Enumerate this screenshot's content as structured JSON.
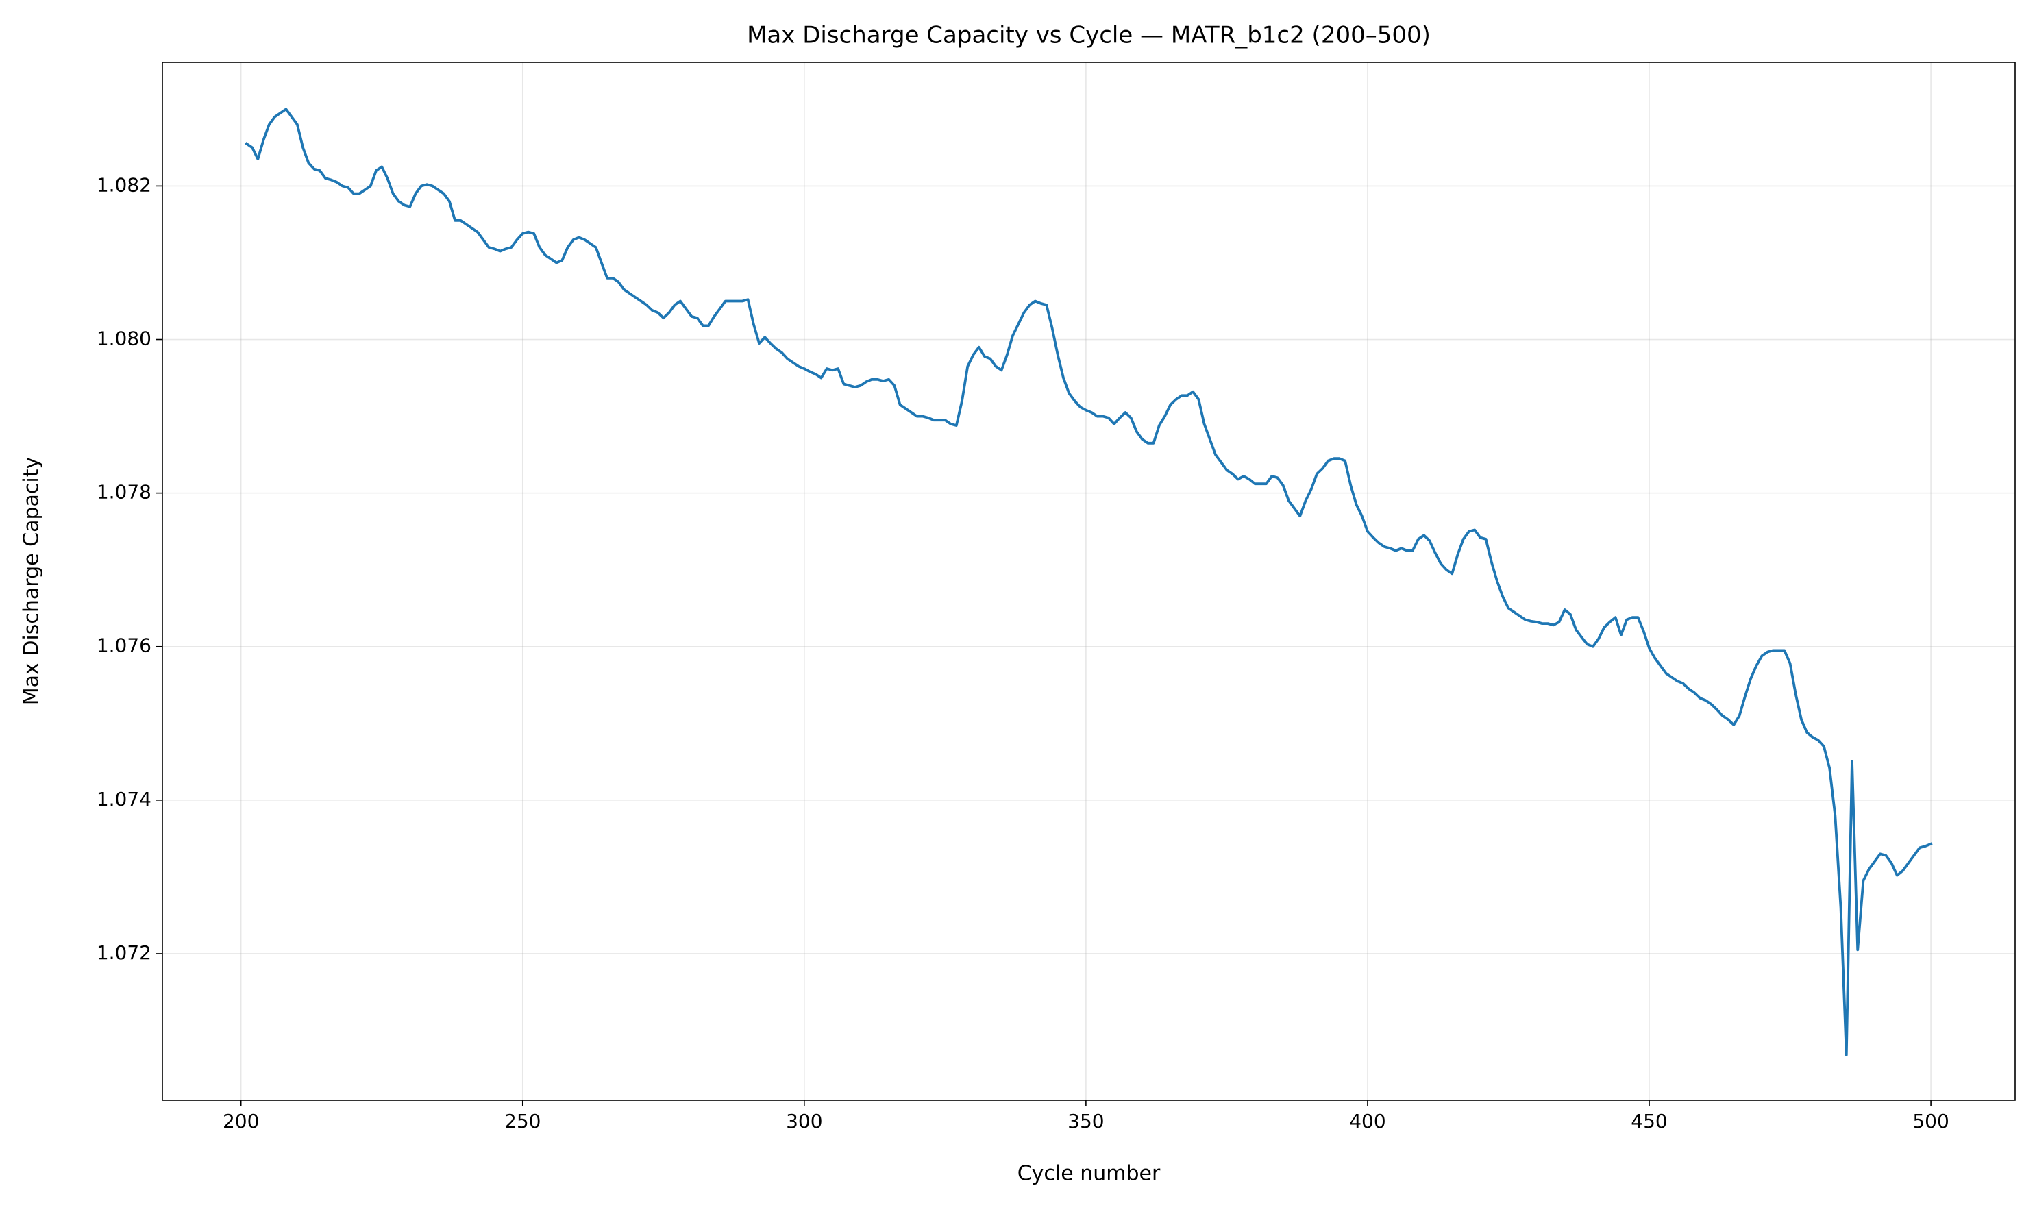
{
  "chart_data": {
    "type": "line",
    "title": "Max Discharge Capacity vs Cycle — MATR_b1c2 (200–500)",
    "x_label": "Cycle number",
    "y_label": "Max Discharge Capacity",
    "color": "#1f77b4",
    "grid": true,
    "xlim": [
      186.05,
      514.95
    ],
    "ylim": [
      1.07009,
      1.08361
    ],
    "xticks": [
      200,
      250,
      300,
      350,
      400,
      450,
      500
    ],
    "yticks": [
      1.072,
      1.074,
      1.076,
      1.078,
      {
        "value": 1.08,
        "label": "1.080"
      },
      1.082
    ],
    "x": [
      201,
      202,
      203,
      204,
      205,
      206,
      207,
      208,
      209,
      210,
      211,
      212,
      213,
      214,
      215,
      216,
      217,
      218,
      219,
      220,
      221,
      222,
      223,
      224,
      225,
      226,
      227,
      228,
      229,
      230,
      231,
      232,
      233,
      234,
      235,
      236,
      237,
      238,
      239,
      240,
      241,
      242,
      243,
      244,
      245,
      246,
      247,
      248,
      249,
      250,
      251,
      252,
      253,
      254,
      255,
      256,
      257,
      258,
      259,
      260,
      261,
      262,
      263,
      264,
      265,
      266,
      267,
      268,
      269,
      270,
      271,
      272,
      273,
      274,
      275,
      276,
      277,
      278,
      279,
      280,
      281,
      282,
      283,
      284,
      285,
      286,
      287,
      288,
      289,
      290,
      291,
      292,
      293,
      294,
      295,
      296,
      297,
      298,
      299,
      300,
      301,
      302,
      303,
      304,
      305,
      306,
      307,
      308,
      309,
      310,
      311,
      312,
      313,
      314,
      315,
      316,
      317,
      318,
      319,
      320,
      321,
      322,
      323,
      324,
      325,
      326,
      327,
      328,
      329,
      330,
      331,
      332,
      333,
      334,
      335,
      336,
      337,
      338,
      339,
      340,
      341,
      342,
      343,
      344,
      345,
      346,
      347,
      348,
      349,
      350,
      351,
      352,
      353,
      354,
      355,
      356,
      357,
      358,
      359,
      360,
      361,
      362,
      363,
      364,
      365,
      366,
      367,
      368,
      369,
      370,
      371,
      372,
      373,
      374,
      375,
      376,
      377,
      378,
      379,
      380,
      381,
      382,
      383,
      384,
      385,
      386,
      387,
      388,
      389,
      390,
      391,
      392,
      393,
      394,
      395,
      396,
      397,
      398,
      399,
      400,
      401,
      402,
      403,
      404,
      405,
      406,
      407,
      408,
      409,
      410,
      411,
      412,
      413,
      414,
      415,
      416,
      417,
      418,
      419,
      420,
      421,
      422,
      423,
      424,
      425,
      426,
      427,
      428,
      429,
      430,
      431,
      432,
      433,
      434,
      435,
      436,
      437,
      438,
      439,
      440,
      441,
      442,
      443,
      444,
      445,
      446,
      447,
      448,
      449,
      450,
      451,
      452,
      453,
      454,
      455,
      456,
      457,
      458,
      459,
      460,
      461,
      462,
      463,
      464,
      465,
      466,
      467,
      468,
      469,
      470,
      471,
      472,
      473,
      474,
      475,
      476,
      477,
      478,
      479,
      480,
      481,
      482,
      483,
      484,
      485,
      486,
      487,
      488,
      489,
      490,
      491,
      492,
      493,
      494,
      495,
      496,
      497,
      498,
      499,
      500
    ],
    "values": [
      1.08255,
      1.0825,
      1.08235,
      1.0826,
      1.0828,
      1.0829,
      1.08295,
      1.083,
      1.0829,
      1.0828,
      1.0825,
      1.0823,
      1.08222,
      1.0822,
      1.0821,
      1.08208,
      1.08205,
      1.082,
      1.08198,
      1.0819,
      1.0819,
      1.08195,
      1.082,
      1.0822,
      1.08225,
      1.0821,
      1.0819,
      1.0818,
      1.08175,
      1.08173,
      1.0819,
      1.082,
      1.08202,
      1.082,
      1.08195,
      1.0819,
      1.0818,
      1.08155,
      1.08155,
      1.0815,
      1.08145,
      1.0814,
      1.0813,
      1.0812,
      1.08118,
      1.08115,
      1.08118,
      1.0812,
      1.0813,
      1.08138,
      1.0814,
      1.08138,
      1.0812,
      1.0811,
      1.08105,
      1.081,
      1.08103,
      1.0812,
      1.0813,
      1.08133,
      1.0813,
      1.08125,
      1.0812,
      1.081,
      1.0808,
      1.0808,
      1.08075,
      1.08065,
      1.0806,
      1.08055,
      1.0805,
      1.08045,
      1.08038,
      1.08035,
      1.08028,
      1.08035,
      1.08045,
      1.0805,
      1.0804,
      1.0803,
      1.08028,
      1.08018,
      1.08018,
      1.0803,
      1.0804,
      1.0805,
      1.0805,
      1.0805,
      1.0805,
      1.08052,
      1.0802,
      1.07995,
      1.08003,
      1.07995,
      1.07988,
      1.07983,
      1.07975,
      1.0797,
      1.07965,
      1.07962,
      1.07958,
      1.07955,
      1.0795,
      1.07962,
      1.0796,
      1.07962,
      1.07942,
      1.0794,
      1.07938,
      1.0794,
      1.07945,
      1.07948,
      1.07948,
      1.07946,
      1.07948,
      1.0794,
      1.07915,
      1.0791,
      1.07905,
      1.079,
      1.079,
      1.07898,
      1.07895,
      1.07895,
      1.07895,
      1.0789,
      1.07888,
      1.0792,
      1.07965,
      1.0798,
      1.0799,
      1.07978,
      1.07975,
      1.07965,
      1.0796,
      1.0798,
      1.08005,
      1.0802,
      1.08035,
      1.08045,
      1.0805,
      1.08047,
      1.08045,
      1.08015,
      1.0798,
      1.0795,
      1.0793,
      1.0792,
      1.07912,
      1.07908,
      1.07905,
      1.079,
      1.079,
      1.07898,
      1.0789,
      1.07898,
      1.07905,
      1.07898,
      1.0788,
      1.0787,
      1.07865,
      1.07865,
      1.07888,
      1.079,
      1.07915,
      1.07922,
      1.07927,
      1.07927,
      1.07932,
      1.07922,
      1.0789,
      1.0787,
      1.0785,
      1.0784,
      1.0783,
      1.07825,
      1.07818,
      1.07822,
      1.07818,
      1.07812,
      1.07812,
      1.07812,
      1.07822,
      1.0782,
      1.0781,
      1.0779,
      1.0778,
      1.0777,
      1.0779,
      1.07805,
      1.07825,
      1.07832,
      1.07842,
      1.07845,
      1.07845,
      1.07842,
      1.0781,
      1.07785,
      1.0777,
      1.0775,
      1.07742,
      1.07735,
      1.0773,
      1.07728,
      1.07725,
      1.07728,
      1.07725,
      1.07725,
      1.0774,
      1.07745,
      1.07738,
      1.07722,
      1.07708,
      1.077,
      1.07695,
      1.0772,
      1.0774,
      1.0775,
      1.07752,
      1.07742,
      1.0774,
      1.0771,
      1.07685,
      1.07665,
      1.0765,
      1.07645,
      1.0764,
      1.07635,
      1.07633,
      1.07632,
      1.0763,
      1.0763,
      1.07628,
      1.07632,
      1.07648,
      1.07642,
      1.07622,
      1.07612,
      1.07603,
      1.076,
      1.0761,
      1.07625,
      1.07632,
      1.07638,
      1.07615,
      1.07635,
      1.07638,
      1.07638,
      1.0762,
      1.07598,
      1.07585,
      1.07575,
      1.07565,
      1.0756,
      1.07555,
      1.07552,
      1.07545,
      1.0754,
      1.07533,
      1.0753,
      1.07525,
      1.07518,
      1.0751,
      1.07505,
      1.07498,
      1.0751,
      1.07535,
      1.07558,
      1.07575,
      1.07588,
      1.07593,
      1.07595,
      1.07595,
      1.07595,
      1.07578,
      1.07538,
      1.07505,
      1.07488,
      1.07482,
      1.07478,
      1.0747,
      1.07442,
      1.0738,
      1.0726,
      1.07068,
      1.0745,
      1.07205,
      1.07295,
      1.0731,
      1.0732,
      1.0733,
      1.07328,
      1.07318,
      1.07302,
      1.07308,
      1.07318,
      1.07328,
      1.07338,
      1.0734,
      1.07343
    ]
  }
}
